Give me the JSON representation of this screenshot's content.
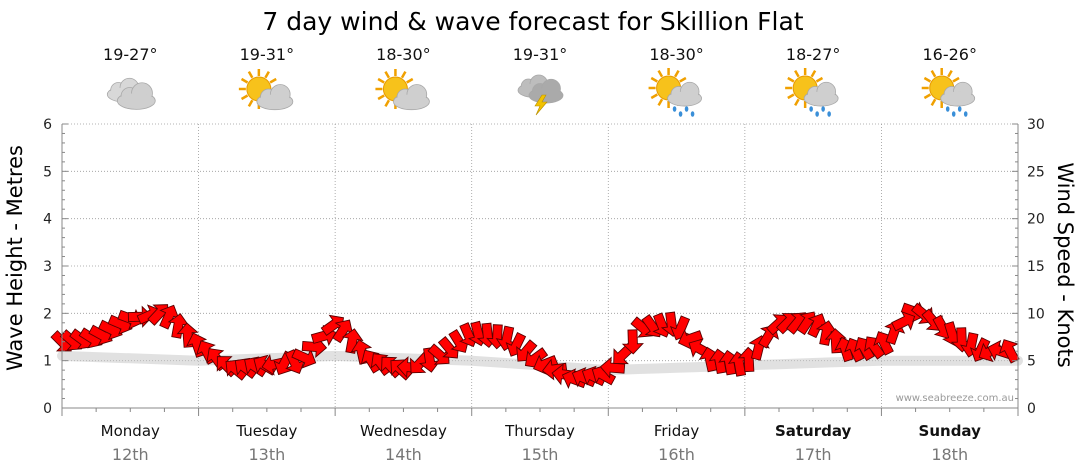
{
  "colors": {
    "arrow_fill": "#ff0000",
    "arrow_stroke": "#5a0000",
    "sun": "#f7c21b",
    "cloud": "#cfcfcf",
    "rain": "#3a8fd8",
    "bolt": "#f2c200"
  },
  "chart_data": {
    "type": "line",
    "title": "7 day wind & wave forecast for Skillion Flat",
    "ylabel_left": "Wave Height - Metres",
    "ylabel_right": "Wind Speed - Knots",
    "ylim_left": [
      0,
      6
    ],
    "ylim_right": [
      0,
      30
    ],
    "yticks_left": [
      "0",
      "1",
      "2",
      "3",
      "4",
      "5",
      "6"
    ],
    "yticks_right": [
      "0",
      "5",
      "10",
      "15",
      "20",
      "25",
      "30"
    ],
    "grid": true,
    "credit": "www.seabreeze.com.au",
    "days": [
      {
        "day": "Monday",
        "date": "12th",
        "temp": "19-27°",
        "icon": "cloudy-icon",
        "bold": false
      },
      {
        "day": "Tuesday",
        "date": "13th",
        "temp": "19-31°",
        "icon": "partly-cloudy-icon",
        "bold": false
      },
      {
        "day": "Wednesday",
        "date": "14th",
        "temp": "18-30°",
        "icon": "partly-cloudy-icon",
        "bold": false
      },
      {
        "day": "Thursday",
        "date": "15th",
        "temp": "19-31°",
        "icon": "thunderstorm-icon",
        "bold": false
      },
      {
        "day": "Friday",
        "date": "16th",
        "temp": "18-30°",
        "icon": "sun-showers-icon",
        "bold": false
      },
      {
        "day": "Saturday",
        "date": "17th",
        "temp": "18-27°",
        "icon": "sun-showers-icon",
        "bold": true
      },
      {
        "day": "Sunday",
        "date": "18th",
        "temp": "16-26°",
        "icon": "sun-showers-icon",
        "bold": true
      }
    ],
    "wind_series": {
      "name": "Wind Speed",
      "x_unit": "hours from Monday 00:00",
      "x": [
        0,
        6,
        12,
        18,
        24,
        30,
        36,
        42,
        48,
        54,
        60,
        66,
        72,
        78,
        84,
        90,
        96,
        102,
        108,
        114,
        120,
        126,
        132,
        138,
        144,
        150,
        156,
        162,
        168
      ],
      "knots": [
        7,
        7.5,
        9.5,
        10,
        6.5,
        4,
        4.5,
        5,
        9,
        5,
        4,
        5.5,
        8,
        7.5,
        5,
        3,
        3.5,
        8.5,
        9,
        5,
        4.5,
        9,
        9,
        6,
        6.5,
        10.5,
        8,
        6,
        6
      ],
      "direction_deg": [
        45,
        30,
        20,
        300,
        250,
        220,
        210,
        30,
        320,
        240,
        220,
        40,
        70,
        100,
        150,
        200,
        210,
        40,
        90,
        260,
        260,
        320,
        300,
        250,
        230,
        30,
        70,
        120,
        280
      ]
    },
    "wave_series": {
      "name": "Wave Height",
      "x": [
        0,
        24,
        48,
        72,
        96,
        120,
        144,
        168
      ],
      "metres": [
        1.1,
        1.0,
        1.1,
        1.0,
        0.8,
        0.9,
        1.0,
        1.0
      ]
    }
  }
}
